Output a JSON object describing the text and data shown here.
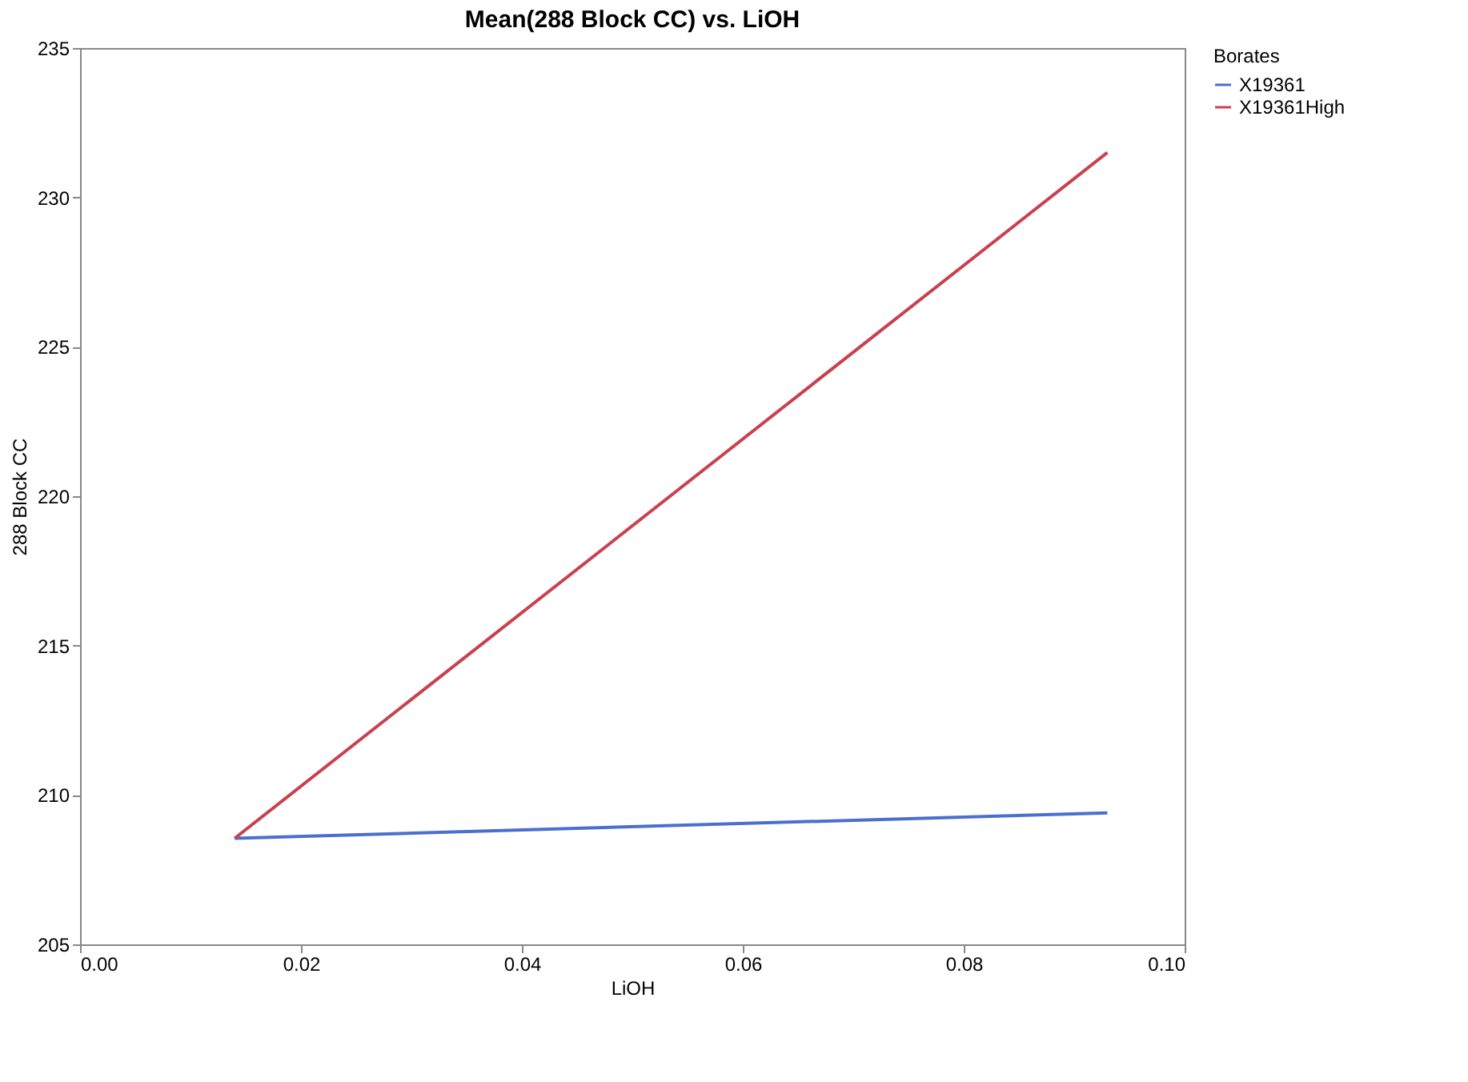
{
  "chart_data": {
    "type": "line",
    "title": "Mean(288 Block CC) vs. LiOH",
    "xlabel": "LiOH",
    "ylabel": "288 Block CC",
    "legend_title": "Borates",
    "legend": "top right",
    "grid": false,
    "marker": "none",
    "line_style": "solid",
    "xlim": [
      0,
      0.1
    ],
    "xticks": [
      {
        "value": 0,
        "label": "0.00"
      },
      {
        "value": 0.02,
        "label": "0.02"
      },
      {
        "value": 0.04,
        "label": "0.04"
      },
      {
        "value": 0.06,
        "label": "0.06"
      },
      {
        "value": 0.08,
        "label": "0.08"
      },
      {
        "value": 0.1,
        "label": "0.10"
      }
    ],
    "ylim": [
      205,
      235
    ],
    "yticks": [
      205,
      210,
      215,
      220,
      225,
      230,
      235
    ],
    "x": [
      0.014,
      0.093
    ],
    "series": [
      {
        "name": "X19361",
        "color": "#4a6fd0",
        "values": [
          208.55,
          209.4
        ]
      },
      {
        "name": "X19361High",
        "color": "#c8414e",
        "values": [
          208.55,
          231.5
        ]
      }
    ]
  }
}
